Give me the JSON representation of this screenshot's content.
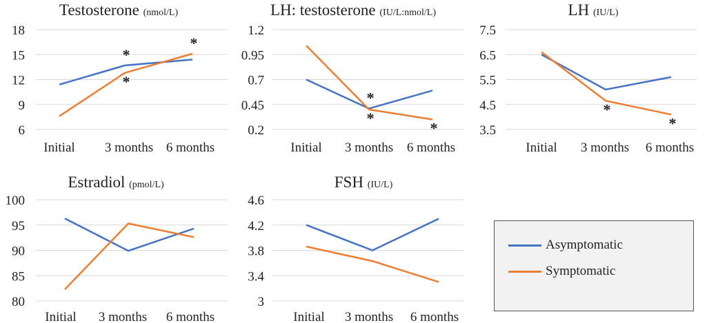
{
  "chart_data": [
    {
      "type": "line",
      "title": "Testosterone",
      "unit": "(nmol/L)",
      "categories": [
        "Initial",
        "3 months",
        "6 months"
      ],
      "ylim": [
        6,
        18
      ],
      "yticks": [
        "18",
        "15",
        "12",
        "9",
        "6"
      ],
      "series": [
        {
          "name": "Asymptomatic",
          "values": [
            11.4,
            13.7,
            14.4
          ],
          "significant": [
            false,
            true,
            false
          ]
        },
        {
          "name": "Symptomatic",
          "values": [
            7.6,
            12.8,
            15.1
          ],
          "significant": [
            false,
            true,
            true
          ]
        }
      ]
    },
    {
      "type": "line",
      "title": "LH: testosterone",
      "unit": "(IU/L:nmol/L)",
      "categories": [
        "Initial",
        "3 months",
        "6 months"
      ],
      "ylim": [
        0.2,
        1.2
      ],
      "yticks": [
        "1.2",
        "0.95",
        "0.7",
        "0.45",
        "0.2"
      ],
      "series": [
        {
          "name": "Asymptomatic",
          "values": [
            0.7,
            0.41,
            0.59
          ],
          "significant": [
            false,
            true,
            false
          ]
        },
        {
          "name": "Symptomatic",
          "values": [
            1.04,
            0.4,
            0.3
          ],
          "significant": [
            false,
            true,
            true
          ]
        }
      ]
    },
    {
      "type": "line",
      "title": "LH",
      "unit": "(IU/L)",
      "categories": [
        "Initial",
        "3 months",
        "6 months"
      ],
      "ylim": [
        3.5,
        7.5
      ],
      "yticks": [
        "7.5",
        "6.5",
        "5.5",
        "4.5",
        "3.5"
      ],
      "series": [
        {
          "name": "Asymptomatic",
          "values": [
            6.5,
            5.1,
            5.6
          ],
          "significant": [
            false,
            false,
            false
          ]
        },
        {
          "name": "Symptomatic",
          "values": [
            6.6,
            4.65,
            4.1
          ],
          "significant": [
            false,
            true,
            true
          ]
        }
      ]
    },
    {
      "type": "line",
      "title": "Estradiol",
      "unit": "(pmol/L)",
      "categories": [
        "Initial",
        "3 months",
        "6 months"
      ],
      "ylim": [
        80,
        100
      ],
      "yticks": [
        "100",
        "95",
        "90",
        "85",
        "80"
      ],
      "series": [
        {
          "name": "Asymptomatic",
          "values": [
            96.3,
            89.9,
            94.3
          ],
          "significant": [
            false,
            false,
            false
          ]
        },
        {
          "name": "Symptomatic",
          "values": [
            82.3,
            95.3,
            92.6
          ],
          "significant": [
            false,
            false,
            false
          ]
        }
      ]
    },
    {
      "type": "line",
      "title": "FSH",
      "unit": "(IU/L)",
      "categories": [
        "Initial",
        "3 months",
        "6 months"
      ],
      "ylim": [
        3,
        4.6
      ],
      "yticks": [
        "4.6",
        "4.2",
        "3.8",
        "3.4",
        "3"
      ],
      "series": [
        {
          "name": "Asymptomatic",
          "values": [
            4.2,
            3.8,
            4.3
          ],
          "significant": [
            false,
            false,
            false
          ]
        },
        {
          "name": "Symptomatic",
          "values": [
            3.86,
            3.63,
            3.3
          ],
          "significant": [
            false,
            false,
            false
          ]
        }
      ]
    }
  ],
  "legend": {
    "items": [
      {
        "label": "Asymptomatic",
        "color": "#4472C4"
      },
      {
        "label": "Symptomatic",
        "color": "#ED7D31"
      }
    ]
  },
  "significance_marker": "*",
  "colors": {
    "asymptomatic": "#4472C4",
    "symptomatic": "#ED7D31",
    "grid": "#d9d9d9"
  }
}
